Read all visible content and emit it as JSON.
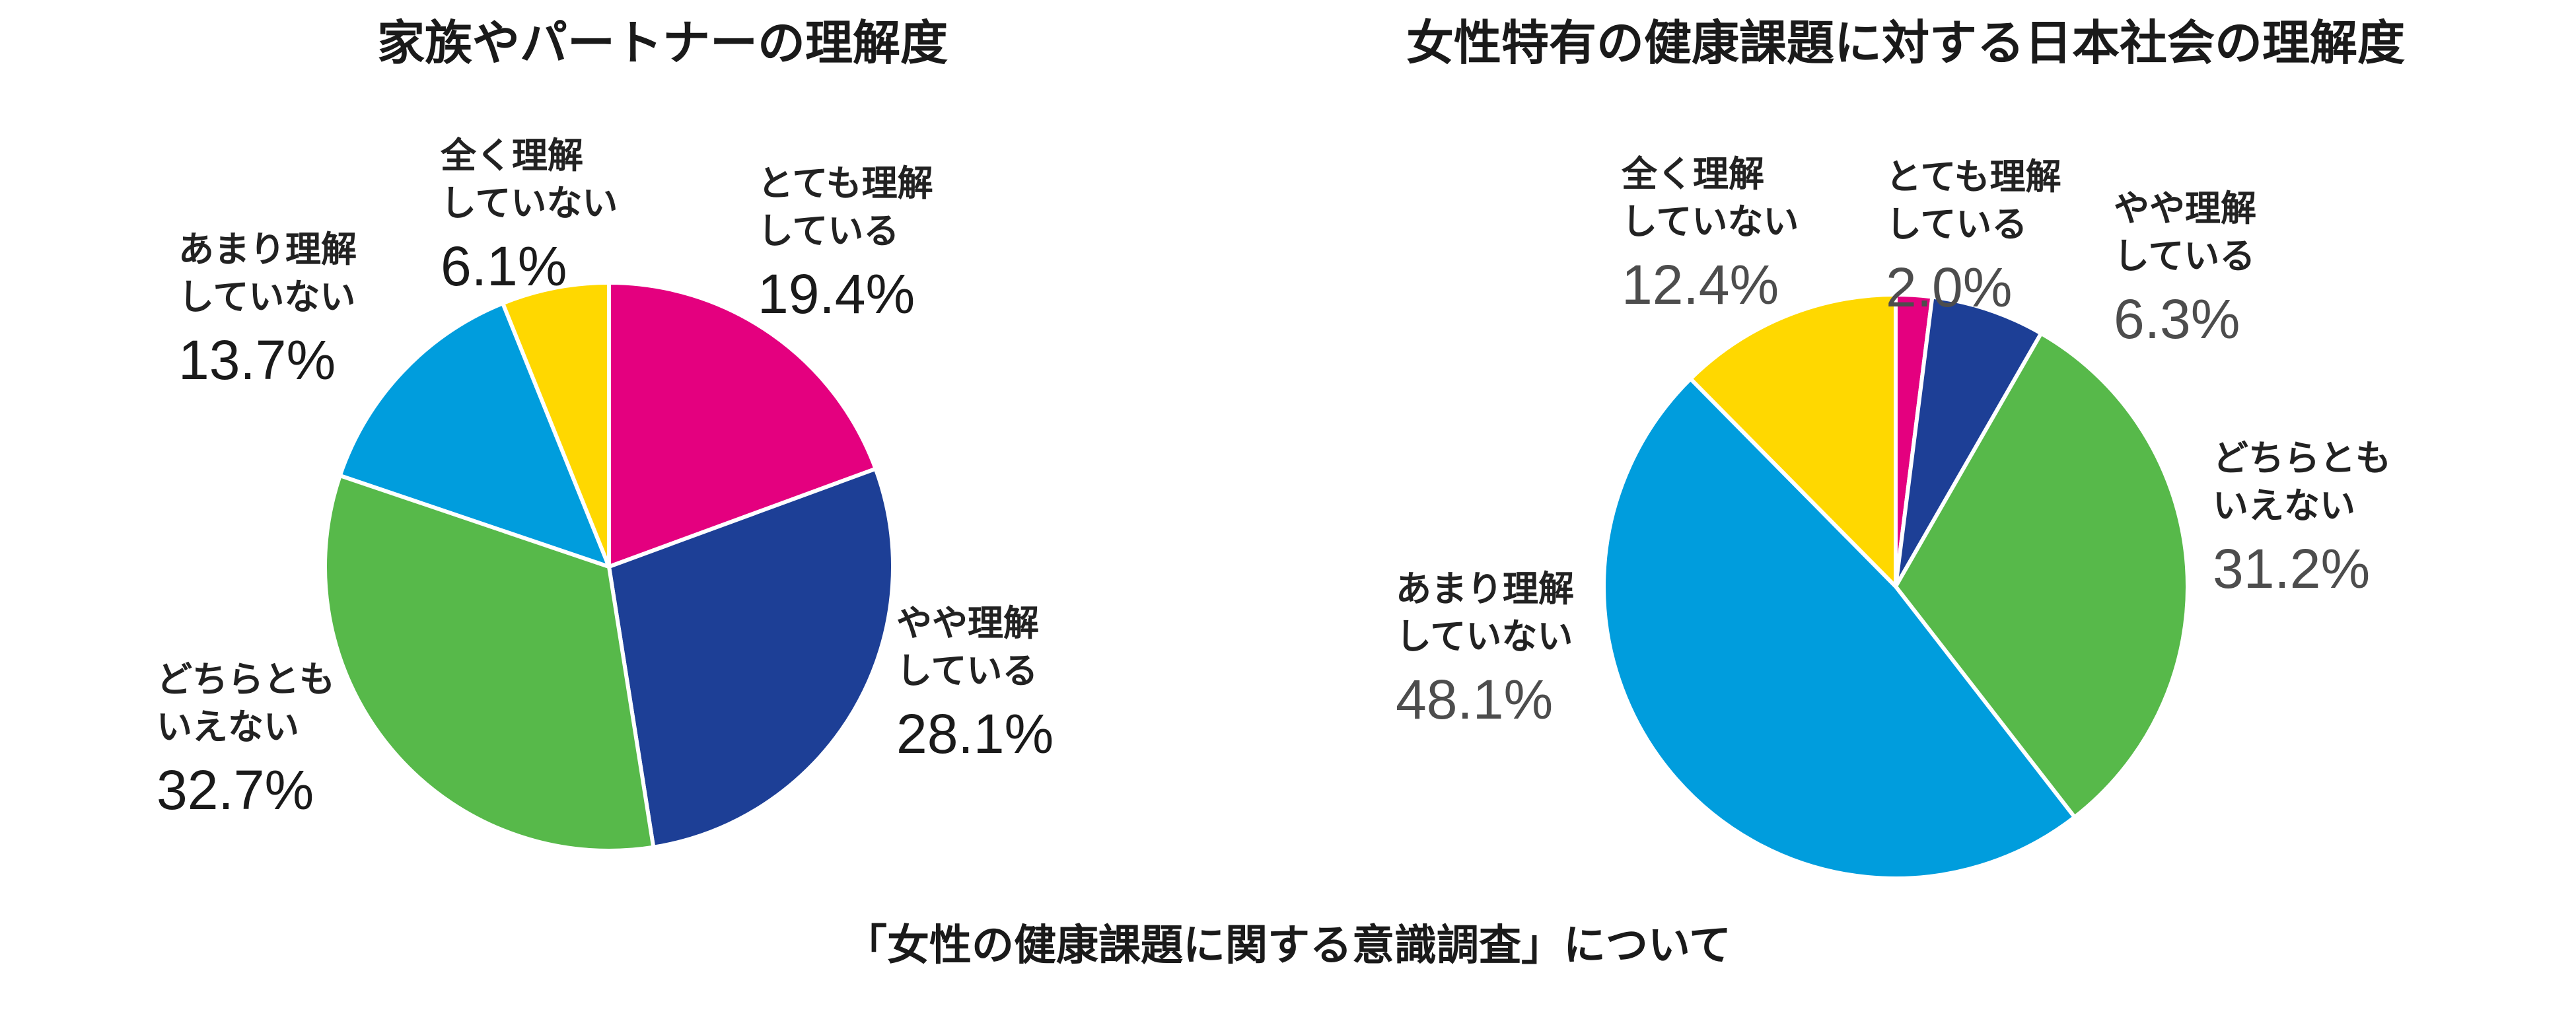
{
  "caption": "「女性の健康課題に関する意識調査」について",
  "colors": {
    "magenta": "#E4007F",
    "navy": "#1D3F96",
    "green": "#57B94A",
    "cyan": "#009DDD",
    "yellow": "#FFD800"
  },
  "chart_data": [
    {
      "type": "pie",
      "title": "家族やパートナーの理解度",
      "start": "12 o'clock",
      "direction": "clockwise",
      "slices": [
        {
          "label_lines": [
            "とても理解",
            "している"
          ],
          "value": 19.4,
          "value_text": "19.4%",
          "color": "#E4007F"
        },
        {
          "label_lines": [
            "やや理解",
            "している"
          ],
          "value": 28.1,
          "value_text": "28.1%",
          "color": "#1D3F96"
        },
        {
          "label_lines": [
            "どちらとも",
            "いえない"
          ],
          "value": 32.7,
          "value_text": "32.7%",
          "color": "#57B94A"
        },
        {
          "label_lines": [
            "あまり理解",
            "していない"
          ],
          "value": 13.7,
          "value_text": "13.7%",
          "color": "#009DDD"
        },
        {
          "label_lines": [
            "全く理解",
            "していない"
          ],
          "value": 6.1,
          "value_text": "6.1%",
          "color": "#FFD800"
        }
      ]
    },
    {
      "type": "pie",
      "title": "女性特有の健康課題に対する日本社会の理解度",
      "start": "12 o'clock",
      "direction": "clockwise",
      "slices": [
        {
          "label_lines": [
            "とても理解",
            "している"
          ],
          "value": 2.0,
          "value_text": "2.0%",
          "color": "#E4007F"
        },
        {
          "label_lines": [
            "やや理解",
            "している"
          ],
          "value": 6.3,
          "value_text": "6.3%",
          "color": "#1D3F96"
        },
        {
          "label_lines": [
            "どちらとも",
            "いえない"
          ],
          "value": 31.2,
          "value_text": "31.2%",
          "color": "#57B94A"
        },
        {
          "label_lines": [
            "あまり理解",
            "していない"
          ],
          "value": 48.1,
          "value_text": "48.1%",
          "color": "#009DDD"
        },
        {
          "label_lines": [
            "全く理解",
            "していない"
          ],
          "value": 12.4,
          "value_text": "12.4%",
          "color": "#FFD800"
        }
      ]
    }
  ]
}
